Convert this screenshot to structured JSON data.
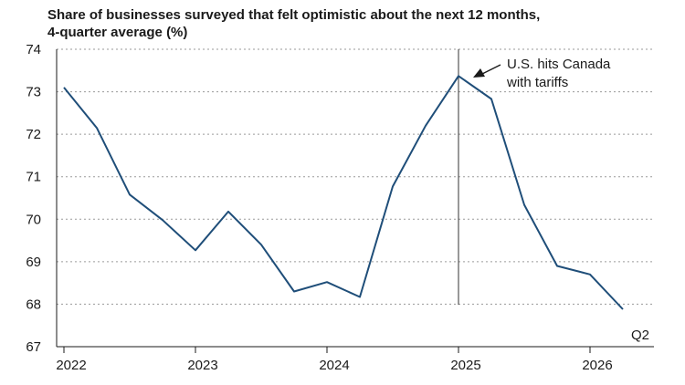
{
  "chart_data": {
    "type": "line",
    "title_lines": [
      "Share of businesses surveyed that felt optimistic about the next 12 months,",
      "4-quarter average (%)"
    ],
    "xlabel": "",
    "ylabel": "",
    "ylim": [
      67,
      74
    ],
    "yticks": [
      67,
      68,
      69,
      70,
      71,
      72,
      73,
      74
    ],
    "xticks": [
      "2022",
      "2023",
      "2024",
      "2025",
      "2026"
    ],
    "grid": "horizontal dotted",
    "series": [
      {
        "color": "#1f4e79",
        "points": [
          {
            "x": "2022 Q1",
            "y": 73.1
          },
          {
            "x": "2022 Q2",
            "y": 72.15
          },
          {
            "x": "2022 Q3",
            "y": 70.58
          },
          {
            "x": "2022 Q4",
            "y": 69.98
          },
          {
            "x": "2023 Q1",
            "y": 69.27
          },
          {
            "x": "2023 Q2",
            "y": 70.18
          },
          {
            "x": "2023 Q3",
            "y": 69.4
          },
          {
            "x": "2023 Q4",
            "y": 68.3
          },
          {
            "x": "2024 Q1",
            "y": 68.52
          },
          {
            "x": "2024 Q2",
            "y": 68.17
          },
          {
            "x": "2024 Q3",
            "y": 70.77
          },
          {
            "x": "2024 Q4",
            "y": 72.2
          },
          {
            "x": "2025 Q1",
            "y": 73.37
          },
          {
            "x": "2025 Q2",
            "y": 72.83
          },
          {
            "x": "2025 Q3",
            "y": 70.34
          },
          {
            "x": "2025 Q4",
            "y": 68.9
          },
          {
            "x": "2026 Q1",
            "y": 68.7
          },
          {
            "x": "2026 Q2",
            "y": 67.88
          }
        ]
      }
    ],
    "annotations": {
      "vline_at": "2025 Q1",
      "vline_text_lines": [
        "U.S. hits Canada",
        "with tariffs"
      ],
      "end_label": "Q2"
    }
  }
}
